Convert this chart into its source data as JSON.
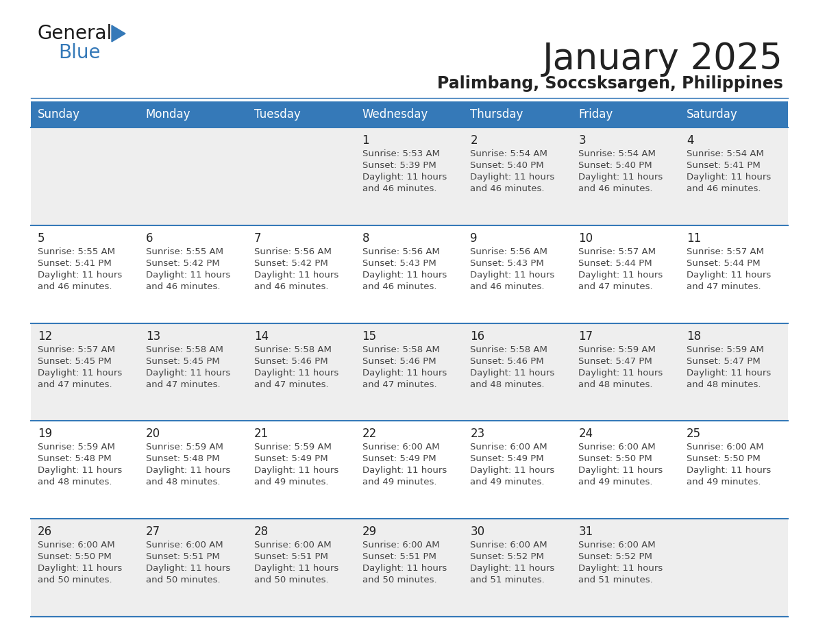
{
  "title": "January 2025",
  "subtitle": "Palimbang, Soccsksargen, Philippines",
  "header_bg_color": "#3579B8",
  "header_text_color": "#FFFFFF",
  "day_names": [
    "Sunday",
    "Monday",
    "Tuesday",
    "Wednesday",
    "Thursday",
    "Friday",
    "Saturday"
  ],
  "row_bg_colors": [
    "#EEEEEE",
    "#FFFFFF"
  ],
  "border_color": "#3579B8",
  "cell_text_color": "#444444",
  "day_num_color": "#222222",
  "background_color": "#FFFFFF",
  "calendar_data": [
    [
      {
        "day": "",
        "sunrise": "",
        "sunset": "",
        "daylight_h": "",
        "daylight_m": ""
      },
      {
        "day": "",
        "sunrise": "",
        "sunset": "",
        "daylight_h": "",
        "daylight_m": ""
      },
      {
        "day": "",
        "sunrise": "",
        "sunset": "",
        "daylight_h": "",
        "daylight_m": ""
      },
      {
        "day": "1",
        "sunrise": "5:53 AM",
        "sunset": "5:39 PM",
        "daylight_h": "11",
        "daylight_m": "46"
      },
      {
        "day": "2",
        "sunrise": "5:54 AM",
        "sunset": "5:40 PM",
        "daylight_h": "11",
        "daylight_m": "46"
      },
      {
        "day": "3",
        "sunrise": "5:54 AM",
        "sunset": "5:40 PM",
        "daylight_h": "11",
        "daylight_m": "46"
      },
      {
        "day": "4",
        "sunrise": "5:54 AM",
        "sunset": "5:41 PM",
        "daylight_h": "11",
        "daylight_m": "46"
      }
    ],
    [
      {
        "day": "5",
        "sunrise": "5:55 AM",
        "sunset": "5:41 PM",
        "daylight_h": "11",
        "daylight_m": "46"
      },
      {
        "day": "6",
        "sunrise": "5:55 AM",
        "sunset": "5:42 PM",
        "daylight_h": "11",
        "daylight_m": "46"
      },
      {
        "day": "7",
        "sunrise": "5:56 AM",
        "sunset": "5:42 PM",
        "daylight_h": "11",
        "daylight_m": "46"
      },
      {
        "day": "8",
        "sunrise": "5:56 AM",
        "sunset": "5:43 PM",
        "daylight_h": "11",
        "daylight_m": "46"
      },
      {
        "day": "9",
        "sunrise": "5:56 AM",
        "sunset": "5:43 PM",
        "daylight_h": "11",
        "daylight_m": "46"
      },
      {
        "day": "10",
        "sunrise": "5:57 AM",
        "sunset": "5:44 PM",
        "daylight_h": "11",
        "daylight_m": "47"
      },
      {
        "day": "11",
        "sunrise": "5:57 AM",
        "sunset": "5:44 PM",
        "daylight_h": "11",
        "daylight_m": "47"
      }
    ],
    [
      {
        "day": "12",
        "sunrise": "5:57 AM",
        "sunset": "5:45 PM",
        "daylight_h": "11",
        "daylight_m": "47"
      },
      {
        "day": "13",
        "sunrise": "5:58 AM",
        "sunset": "5:45 PM",
        "daylight_h": "11",
        "daylight_m": "47"
      },
      {
        "day": "14",
        "sunrise": "5:58 AM",
        "sunset": "5:46 PM",
        "daylight_h": "11",
        "daylight_m": "47"
      },
      {
        "day": "15",
        "sunrise": "5:58 AM",
        "sunset": "5:46 PM",
        "daylight_h": "11",
        "daylight_m": "47"
      },
      {
        "day": "16",
        "sunrise": "5:58 AM",
        "sunset": "5:46 PM",
        "daylight_h": "11",
        "daylight_m": "48"
      },
      {
        "day": "17",
        "sunrise": "5:59 AM",
        "sunset": "5:47 PM",
        "daylight_h": "11",
        "daylight_m": "48"
      },
      {
        "day": "18",
        "sunrise": "5:59 AM",
        "sunset": "5:47 PM",
        "daylight_h": "11",
        "daylight_m": "48"
      }
    ],
    [
      {
        "day": "19",
        "sunrise": "5:59 AM",
        "sunset": "5:48 PM",
        "daylight_h": "11",
        "daylight_m": "48"
      },
      {
        "day": "20",
        "sunrise": "5:59 AM",
        "sunset": "5:48 PM",
        "daylight_h": "11",
        "daylight_m": "48"
      },
      {
        "day": "21",
        "sunrise": "5:59 AM",
        "sunset": "5:49 PM",
        "daylight_h": "11",
        "daylight_m": "49"
      },
      {
        "day": "22",
        "sunrise": "6:00 AM",
        "sunset": "5:49 PM",
        "daylight_h": "11",
        "daylight_m": "49"
      },
      {
        "day": "23",
        "sunrise": "6:00 AM",
        "sunset": "5:49 PM",
        "daylight_h": "11",
        "daylight_m": "49"
      },
      {
        "day": "24",
        "sunrise": "6:00 AM",
        "sunset": "5:50 PM",
        "daylight_h": "11",
        "daylight_m": "49"
      },
      {
        "day": "25",
        "sunrise": "6:00 AM",
        "sunset": "5:50 PM",
        "daylight_h": "11",
        "daylight_m": "49"
      }
    ],
    [
      {
        "day": "26",
        "sunrise": "6:00 AM",
        "sunset": "5:50 PM",
        "daylight_h": "11",
        "daylight_m": "50"
      },
      {
        "day": "27",
        "sunrise": "6:00 AM",
        "sunset": "5:51 PM",
        "daylight_h": "11",
        "daylight_m": "50"
      },
      {
        "day": "28",
        "sunrise": "6:00 AM",
        "sunset": "5:51 PM",
        "daylight_h": "11",
        "daylight_m": "50"
      },
      {
        "day": "29",
        "sunrise": "6:00 AM",
        "sunset": "5:51 PM",
        "daylight_h": "11",
        "daylight_m": "50"
      },
      {
        "day": "30",
        "sunrise": "6:00 AM",
        "sunset": "5:52 PM",
        "daylight_h": "11",
        "daylight_m": "51"
      },
      {
        "day": "31",
        "sunrise": "6:00 AM",
        "sunset": "5:52 PM",
        "daylight_h": "11",
        "daylight_m": "51"
      },
      {
        "day": "",
        "sunrise": "",
        "sunset": "",
        "daylight_h": "",
        "daylight_m": ""
      }
    ]
  ],
  "logo_general_color": "#1A1A1A",
  "logo_blue_color": "#3579B8",
  "logo_triangle_color": "#3579B8",
  "fig_width": 11.88,
  "fig_height": 9.18,
  "dpi": 100
}
